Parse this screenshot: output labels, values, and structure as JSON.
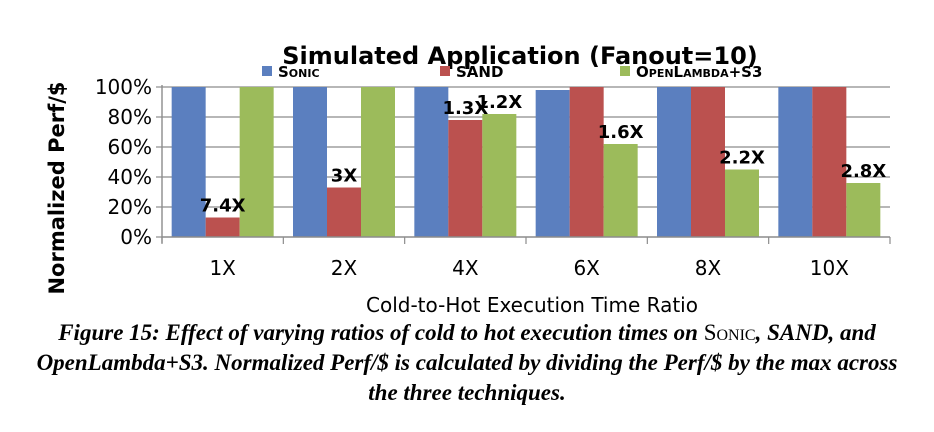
{
  "chart_data": {
    "type": "bar",
    "title": "Simulated Application (Fanout=10)",
    "xlabel": "Cold-to-Hot Execution Time Ratio",
    "ylabel": "Normalized Perf/$",
    "categories": [
      "1X",
      "2X",
      "4X",
      "6X",
      "8X",
      "10X"
    ],
    "yticks": [
      "0%",
      "20%",
      "40%",
      "60%",
      "80%",
      "100%"
    ],
    "ylim": [
      0,
      100
    ],
    "grid": true,
    "legend": "top",
    "series": [
      {
        "name": "Sonic",
        "color": "#5b7fbf",
        "values": [
          100,
          100,
          100,
          98,
          100,
          100
        ]
      },
      {
        "name": "SAND",
        "color": "#bb514f",
        "values": [
          13,
          33,
          78,
          100,
          100,
          100
        ]
      },
      {
        "name": "OpenLambda+S3",
        "color": "#9cbb5b",
        "values": [
          100,
          100,
          82,
          62,
          45,
          36
        ]
      }
    ],
    "annotations": [
      {
        "category": "1X",
        "series": "SAND",
        "text": "7.4X"
      },
      {
        "category": "2X",
        "series": "SAND",
        "text": "3X"
      },
      {
        "category": "4X",
        "series": "SAND",
        "text": "1.3X"
      },
      {
        "category": "4X",
        "series": "OpenLambda+S3",
        "text": "1.2X"
      },
      {
        "category": "6X",
        "series": "OpenLambda+S3",
        "text": "1.6X"
      },
      {
        "category": "8X",
        "series": "OpenLambda+S3",
        "text": "2.2X"
      },
      {
        "category": "10X",
        "series": "OpenLambda+S3",
        "text": "2.8X"
      }
    ]
  },
  "caption": {
    "lead": "Figure 15: Effect of varying ratios of cold to hot execution times on",
    "sonic": "Sonic",
    "rest": ", SAND, and OpenLambda+S3. Normalized Perf/$ is calculated by dividing the Perf/$ by the max across the three techniques."
  }
}
